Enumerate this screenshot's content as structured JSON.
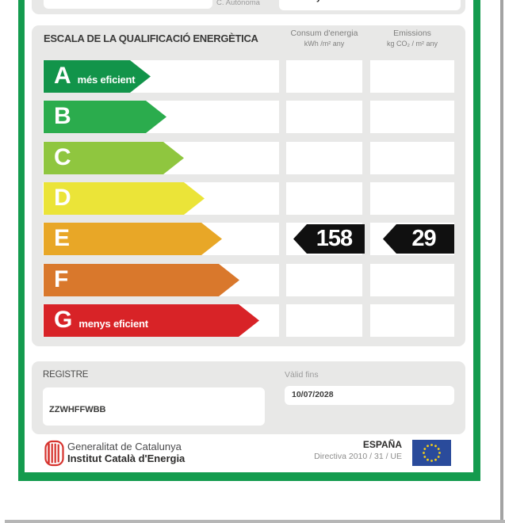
{
  "top_row": {
    "label": "C. Autònoma",
    "value_fragment": "y"
  },
  "scale": {
    "title": "ESCALA DE LA QUALIFICACIÓ ENERGÈTICA",
    "col_consum": {
      "line1": "Consum d'energia",
      "line2": "kWh /m² any"
    },
    "col_emissions": {
      "line1": "Emissions",
      "line2": "kg CO₂ / m² any"
    },
    "ratings": [
      {
        "letter": "A",
        "note": "més eficient",
        "color": "#12944a",
        "arrow_width": 135
      },
      {
        "letter": "B",
        "note": "",
        "color": "#2bac4d",
        "arrow_width": 155
      },
      {
        "letter": "C",
        "note": "",
        "color": "#8fc63f",
        "arrow_width": 177
      },
      {
        "letter": "D",
        "note": "",
        "color": "#ebe438",
        "arrow_width": 203
      },
      {
        "letter": "E",
        "note": "",
        "color": "#e8a727",
        "arrow_width": 225
      },
      {
        "letter": "F",
        "note": "",
        "color": "#d9782c",
        "arrow_width": 247
      },
      {
        "letter": "G",
        "note": "menys eficient",
        "color": "#d82327",
        "arrow_width": 272
      }
    ],
    "selected": {
      "letter": "E",
      "consum_value": "158",
      "emissions_value": "29"
    }
  },
  "registre": {
    "label": "REGISTRE",
    "value": "ZZWHFFWBB"
  },
  "validity": {
    "label": "Vàlid fins",
    "value": "10/07/2028"
  },
  "footer": {
    "org_line1": "Generalitat de Catalunya",
    "org_line2": "Institut Català d'Energia",
    "country": "ESPAÑA",
    "directive": "Directiva 2010 / 31 / UE"
  },
  "colors": {
    "frame_green": "#149b4e",
    "panel_gray": "#e8e8e7",
    "tag_black": "#101010",
    "title_text": "#3a3a39",
    "muted_text": "#9b9b9b"
  }
}
